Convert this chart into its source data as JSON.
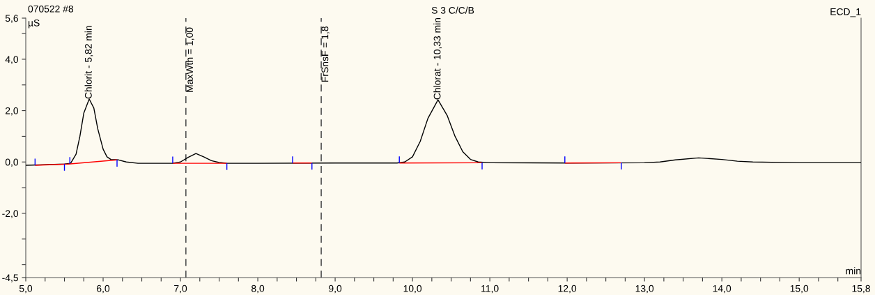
{
  "chart_data": {
    "type": "line",
    "title": "S 3 C/C/B",
    "annotations": [
      "070522 #8",
      "ECD_1",
      {
        "text": "Chlorit - 5,82 min",
        "x": 5.82,
        "y": 2.45
      },
      {
        "text": "Chlorat - 10,33 min",
        "x": 10.33,
        "y": 2.42
      },
      {
        "text": "MaxWth = 1,00",
        "x": 7.07,
        "y": 2.7
      },
      {
        "text": "FrSnsF = 1,8",
        "x": 8.82,
        "y": 3.1
      }
    ],
    "xlabel": "min",
    "ylabel": "µS",
    "series": [
      {
        "color": "#000000",
        "x": [
          5.0,
          5.3,
          5.5,
          5.58,
          5.65,
          5.7,
          5.75,
          5.82,
          5.88,
          5.93,
          6.0,
          6.05,
          6.1,
          6.2,
          6.3,
          6.45,
          6.9,
          7.0,
          7.1,
          7.2,
          7.3,
          7.4,
          7.5,
          7.6,
          8.0,
          9.0,
          9.8,
          9.9,
          10.0,
          10.1,
          10.2,
          10.33,
          10.45,
          10.55,
          10.65,
          10.75,
          10.85,
          11.0,
          12.0,
          13.0,
          13.2,
          13.4,
          13.7,
          14.0,
          14.2,
          14.4,
          15.0,
          15.8
        ],
        "values": [
          -0.13,
          -0.1,
          -0.08,
          -0.05,
          0.3,
          1.0,
          1.9,
          2.45,
          2.1,
          1.3,
          0.5,
          0.2,
          0.1,
          0.08,
          0.0,
          -0.05,
          -0.05,
          0.0,
          0.18,
          0.33,
          0.2,
          0.05,
          -0.02,
          -0.05,
          -0.05,
          -0.04,
          -0.04,
          0.0,
          0.2,
          0.8,
          1.7,
          2.42,
          1.8,
          1.0,
          0.4,
          0.1,
          0.0,
          -0.03,
          -0.04,
          -0.03,
          0.0,
          0.08,
          0.16,
          0.1,
          0.03,
          0.0,
          -0.03,
          -0.03
        ]
      },
      {
        "type": "line",
        "color": "#ff0000",
        "x": [
          5.12,
          5.55,
          6.18
        ],
        "values": [
          -0.13,
          -0.08,
          0.08
        ]
      },
      {
        "type": "line",
        "color": "#ff0000",
        "x": [
          6.9,
          7.6
        ],
        "values": [
          -0.05,
          -0.05
        ]
      },
      {
        "type": "line",
        "color": "#ff0000",
        "x": [
          8.45,
          8.7
        ],
        "values": [
          -0.04,
          -0.04
        ]
      },
      {
        "type": "line",
        "color": "#ff0000",
        "x": [
          9.83,
          10.9
        ],
        "values": [
          -0.04,
          -0.03
        ]
      },
      {
        "type": "line",
        "color": "#ff0000",
        "x": [
          11.97,
          12.7
        ],
        "values": [
          -0.04,
          -0.03
        ]
      },
      {
        "type": "line",
        "color": "#0000ff",
        "x": [
          5.12,
          5.12
        ],
        "values": [
          -0.13,
          0.13
        ]
      },
      {
        "type": "line",
        "color": "#0000ff",
        "x": [
          5.57,
          5.57
        ],
        "values": [
          -0.07,
          0.19
        ]
      },
      {
        "type": "line",
        "color": "#0000ff",
        "x": [
          6.9,
          6.9
        ],
        "values": [
          -0.05,
          0.21
        ]
      },
      {
        "type": "line",
        "color": "#0000ff",
        "x": [
          8.45,
          8.45
        ],
        "values": [
          -0.04,
          0.22
        ]
      },
      {
        "type": "line",
        "color": "#0000ff",
        "x": [
          9.83,
          9.83
        ],
        "values": [
          -0.04,
          0.22
        ]
      },
      {
        "type": "line",
        "color": "#0000ff",
        "x": [
          11.97,
          11.97
        ],
        "values": [
          -0.04,
          0.22
        ]
      },
      {
        "type": "line",
        "color": "#0000ff",
        "x": [
          5.5,
          5.5
        ],
        "values": [
          -0.34,
          -0.08
        ]
      },
      {
        "type": "line",
        "color": "#0000ff",
        "x": [
          6.18,
          6.18
        ],
        "values": [
          -0.18,
          0.08
        ]
      },
      {
        "type": "line",
        "color": "#0000ff",
        "x": [
          7.6,
          7.6
        ],
        "values": [
          -0.31,
          -0.05
        ]
      },
      {
        "type": "line",
        "color": "#0000ff",
        "x": [
          8.7,
          8.7
        ],
        "values": [
          -0.3,
          -0.04
        ]
      },
      {
        "type": "line",
        "color": "#0000ff",
        "x": [
          10.9,
          10.9
        ],
        "values": [
          -0.29,
          -0.03
        ]
      },
      {
        "type": "line",
        "color": "#0000ff",
        "x": [
          12.7,
          12.7
        ],
        "values": [
          -0.29,
          -0.03
        ]
      }
    ],
    "ref_lines": [
      {
        "axis": "x",
        "value": 7.07,
        "color": "#555555",
        "line_style": "dashed"
      },
      {
        "axis": "x",
        "value": 8.82,
        "color": "#555555",
        "line_style": "dashed"
      }
    ],
    "xlim": [
      5.0,
      15.8
    ],
    "ylim": [
      -4.5,
      5.6
    ],
    "xticks": [
      {
        "value": 5.0,
        "label": "5,0"
      },
      {
        "value": 5.25,
        "label": null
      },
      {
        "value": 5.5,
        "label": null
      },
      {
        "value": 5.75,
        "label": null
      },
      {
        "value": 6.0,
        "label": "6,0"
      },
      {
        "value": 6.25,
        "label": null
      },
      {
        "value": 6.5,
        "label": null
      },
      {
        "value": 6.75,
        "label": null
      },
      {
        "value": 7.0,
        "label": "7,0"
      },
      {
        "value": 7.25,
        "label": null
      },
      {
        "value": 7.5,
        "label": null
      },
      {
        "value": 7.75,
        "label": null
      },
      {
        "value": 8.0,
        "label": "8,0"
      },
      {
        "value": 8.25,
        "label": null
      },
      {
        "value": 8.5,
        "label": null
      },
      {
        "value": 8.75,
        "label": null
      },
      {
        "value": 9.0,
        "label": "9,0"
      },
      {
        "value": 9.25,
        "label": null
      },
      {
        "value": 9.5,
        "label": null
      },
      {
        "value": 9.75,
        "label": null
      },
      {
        "value": 10.0,
        "label": "10,0"
      },
      {
        "value": 10.25,
        "label": null
      },
      {
        "value": 10.5,
        "label": null
      },
      {
        "value": 10.75,
        "label": null
      },
      {
        "value": 11.0,
        "label": "11,0"
      },
      {
        "value": 11.25,
        "label": null
      },
      {
        "value": 11.5,
        "label": null
      },
      {
        "value": 11.75,
        "label": null
      },
      {
        "value": 12.0,
        "label": "12,0"
      },
      {
        "value": 12.25,
        "label": null
      },
      {
        "value": 12.5,
        "label": null
      },
      {
        "value": 12.75,
        "label": null
      },
      {
        "value": 13.0,
        "label": "13,0"
      },
      {
        "value": 13.25,
        "label": null
      },
      {
        "value": 13.5,
        "label": null
      },
      {
        "value": 13.75,
        "label": null
      },
      {
        "value": 14.0,
        "label": "14,0"
      },
      {
        "value": 14.25,
        "label": null
      },
      {
        "value": 14.5,
        "label": null
      },
      {
        "value": 14.75,
        "label": null
      },
      {
        "value": 15.0,
        "label": "15,0"
      },
      {
        "value": 15.25,
        "label": null
      },
      {
        "value": 15.5,
        "label": null
      },
      {
        "value": 15.8,
        "label": "15,8"
      }
    ],
    "yticks": [
      {
        "value": -4.5,
        "label": "-4,5"
      },
      {
        "value": -4.0,
        "label": null
      },
      {
        "value": -3.0,
        "label": null
      },
      {
        "value": -2.0,
        "label": "-2,0"
      },
      {
        "value": -1.0,
        "label": null
      },
      {
        "value": 0.0,
        "label": "0,0"
      },
      {
        "value": 1.0,
        "label": null
      },
      {
        "value": 2.0,
        "label": "2,0"
      },
      {
        "value": 3.0,
        "label": null
      },
      {
        "value": 4.0,
        "label": "4,0"
      },
      {
        "value": 5.0,
        "label": null
      },
      {
        "value": 5.6,
        "label": "5,6"
      }
    ],
    "grid": false,
    "legend": false
  }
}
